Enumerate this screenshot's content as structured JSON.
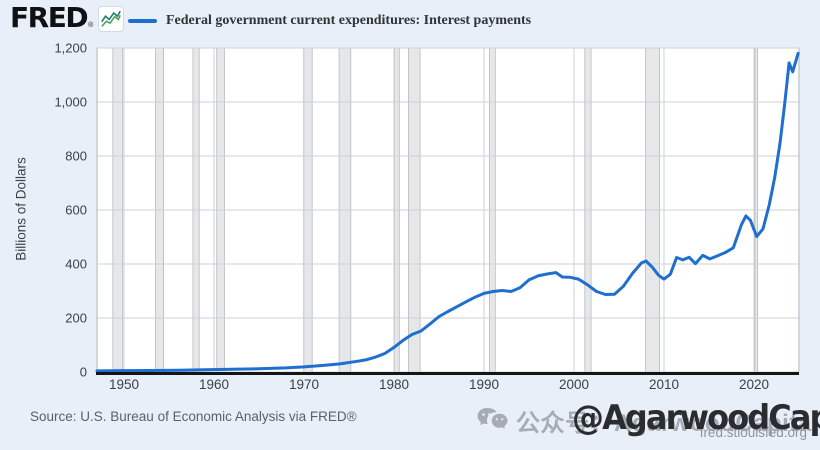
{
  "header": {
    "logo_text": "FRED",
    "logo_reg": "®"
  },
  "legend": {
    "label": "Federal government current expenditures: Interest payments"
  },
  "footer": {
    "source": "Source: U.S. Bureau of Economic Analysis via FRED®",
    "site_url": "fred.stlouisfed.org"
  },
  "watermark": {
    "gray_text": "公众号：AgarwoodCapital",
    "dark_text": "@AgarwoodCapital"
  },
  "colors": {
    "page_bg": "#e9eff8",
    "plot_bg": "#ffffff",
    "grid": "#cdd1d6",
    "plot_border": "#c3c8ce",
    "axis": "#151515",
    "recession_fill": "#e5e7e9",
    "recession_edge": "#b7bbc0",
    "line": "#1e6fd0",
    "tick_text": "#3c4146",
    "logo_icon_teal": "#1d7a6f",
    "logo_icon_green": "#4a9e57",
    "wechat_gray": "#a7acb4"
  },
  "chart_data": {
    "type": "line",
    "title": "Federal government current expenditures: Interest payments",
    "ylabel": "Billions of Dollars",
    "xlabel": "",
    "x_range": [
      1947,
      2025
    ],
    "y_range": [
      0,
      1200
    ],
    "grid": true,
    "legend_position": "top-left",
    "y_ticks": [
      {
        "v": 0,
        "label": "0"
      },
      {
        "v": 200,
        "label": "200"
      },
      {
        "v": 400,
        "label": "400"
      },
      {
        "v": 600,
        "label": "600"
      },
      {
        "v": 800,
        "label": "800"
      },
      {
        "v": 1000,
        "label": "1,000"
      },
      {
        "v": 1200,
        "label": "1,200"
      }
    ],
    "x_ticks": [
      {
        "v": 1950,
        "label": "1950"
      },
      {
        "v": 1960,
        "label": "1960"
      },
      {
        "v": 1970,
        "label": "1970"
      },
      {
        "v": 1980,
        "label": "1980"
      },
      {
        "v": 1990,
        "label": "1990"
      },
      {
        "v": 2000,
        "label": "2000"
      },
      {
        "v": 2010,
        "label": "2010"
      },
      {
        "v": 2020,
        "label": "2020"
      }
    ],
    "recessions": [
      [
        1948.75,
        1949.85
      ],
      [
        1953.5,
        1954.4
      ],
      [
        1957.65,
        1958.35
      ],
      [
        1960.3,
        1961.15
      ],
      [
        1969.95,
        1970.9
      ],
      [
        1973.9,
        1975.2
      ],
      [
        1980.05,
        1980.6
      ],
      [
        1981.6,
        1982.9
      ],
      [
        1990.6,
        1991.25
      ],
      [
        2001.2,
        2001.9
      ],
      [
        2007.95,
        2009.5
      ],
      [
        2020.1,
        2020.4
      ]
    ],
    "series": [
      {
        "name": "Federal government current expenditures: Interest payments",
        "points": [
          [
            1947,
            4
          ],
          [
            1950,
            5
          ],
          [
            1953,
            5.5
          ],
          [
            1956,
            6.5
          ],
          [
            1959,
            8
          ],
          [
            1962,
            10
          ],
          [
            1965,
            12
          ],
          [
            1968,
            15
          ],
          [
            1970,
            19
          ],
          [
            1972,
            24
          ],
          [
            1974,
            30
          ],
          [
            1976,
            40
          ],
          [
            1977,
            46
          ],
          [
            1978,
            56
          ],
          [
            1979,
            69
          ],
          [
            1980,
            91
          ],
          [
            1981,
            117
          ],
          [
            1982,
            139
          ],
          [
            1983,
            152
          ],
          [
            1984,
            178
          ],
          [
            1985,
            205
          ],
          [
            1986,
            224
          ],
          [
            1987,
            242
          ],
          [
            1988,
            260
          ],
          [
            1989,
            277
          ],
          [
            1990,
            291
          ],
          [
            1991,
            298
          ],
          [
            1992,
            302
          ],
          [
            1993,
            298
          ],
          [
            1994,
            312
          ],
          [
            1995,
            341
          ],
          [
            1996,
            356
          ],
          [
            1997,
            363
          ],
          [
            1998,
            368
          ],
          [
            1998.7,
            352
          ],
          [
            1999.5,
            351
          ],
          [
            2000.5,
            344
          ],
          [
            2001.5,
            323
          ],
          [
            2002.5,
            298
          ],
          [
            2003.5,
            287
          ],
          [
            2004.5,
            288
          ],
          [
            2005.5,
            318
          ],
          [
            2006.5,
            365
          ],
          [
            2007.5,
            404
          ],
          [
            2008,
            411
          ],
          [
            2008.7,
            388
          ],
          [
            2009.4,
            358
          ],
          [
            2010,
            344
          ],
          [
            2010.7,
            362
          ],
          [
            2011.4,
            424
          ],
          [
            2012.1,
            415
          ],
          [
            2012.8,
            425
          ],
          [
            2013.5,
            401
          ],
          [
            2014.3,
            432
          ],
          [
            2015.1,
            419
          ],
          [
            2016,
            431
          ],
          [
            2016.9,
            444
          ],
          [
            2017.7,
            460
          ],
          [
            2018.6,
            545
          ],
          [
            2019.1,
            578
          ],
          [
            2019.6,
            562
          ],
          [
            2020.3,
            502
          ],
          [
            2021,
            530
          ],
          [
            2021.7,
            620
          ],
          [
            2022.3,
            720
          ],
          [
            2022.9,
            850
          ],
          [
            2023.4,
            990
          ],
          [
            2023.9,
            1145
          ],
          [
            2024.3,
            1112
          ],
          [
            2024.9,
            1180
          ]
        ]
      }
    ]
  }
}
